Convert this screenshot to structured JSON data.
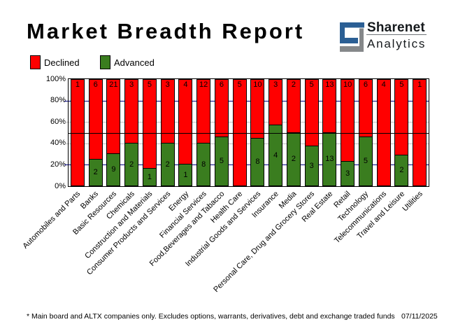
{
  "title": "Market Breadth Report",
  "logo": {
    "name": "Sharenet",
    "sub": "Analytics",
    "blue": "#2b5f94",
    "gray": "#85888a"
  },
  "legend": [
    {
      "label": "Declined",
      "color": "#ff0000"
    },
    {
      "label": "Advanced",
      "color": "#3a7d1f"
    }
  ],
  "chart_data": {
    "type": "bar",
    "stacked": true,
    "title": "Market Breadth Report",
    "categories": [
      "Automobiles and Parts",
      "Banks",
      "Basic Resources",
      "Chemicals",
      "Construction and Materials",
      "Consumer Products and Services",
      "Energy",
      "Financial Services",
      "Food,Beverages and Tabacco",
      "Health Care",
      "Industrial Goods and Services",
      "Insurance",
      "Media",
      "Personal Care, Drug and Grocery Stores",
      "Real Estate",
      "Retail",
      "Technology",
      "Telecommunications",
      "Travel and Leisure",
      "Utilities"
    ],
    "series": [
      {
        "name": "Declined",
        "color": "#ff0000",
        "values": [
          1,
          6,
          21,
          3,
          5,
          3,
          4,
          12,
          6,
          5,
          10,
          3,
          2,
          5,
          13,
          10,
          6,
          4,
          5,
          1
        ]
      },
      {
        "name": "Advanced",
        "color": "#3a7d1f",
        "values": [
          0,
          2,
          9,
          2,
          1,
          2,
          1,
          8,
          5,
          0,
          8,
          4,
          2,
          3,
          13,
          3,
          5,
          0,
          2,
          0
        ]
      }
    ],
    "y_ticks": [
      "100%",
      "80%",
      "60%",
      "40%",
      "20%",
      "0%"
    ],
    "ylim": [
      0,
      100
    ],
    "units": "percent of companies",
    "gridline_colors": {
      "navy": "#000080",
      "silver": "#c0c0c0"
    },
    "midline_percent": 50
  },
  "footer": {
    "note": "* Main board and ALTX companies only. Excludes options, warrants, derivatives, debt and exchange traded funds",
    "date": "07/11/2025"
  }
}
